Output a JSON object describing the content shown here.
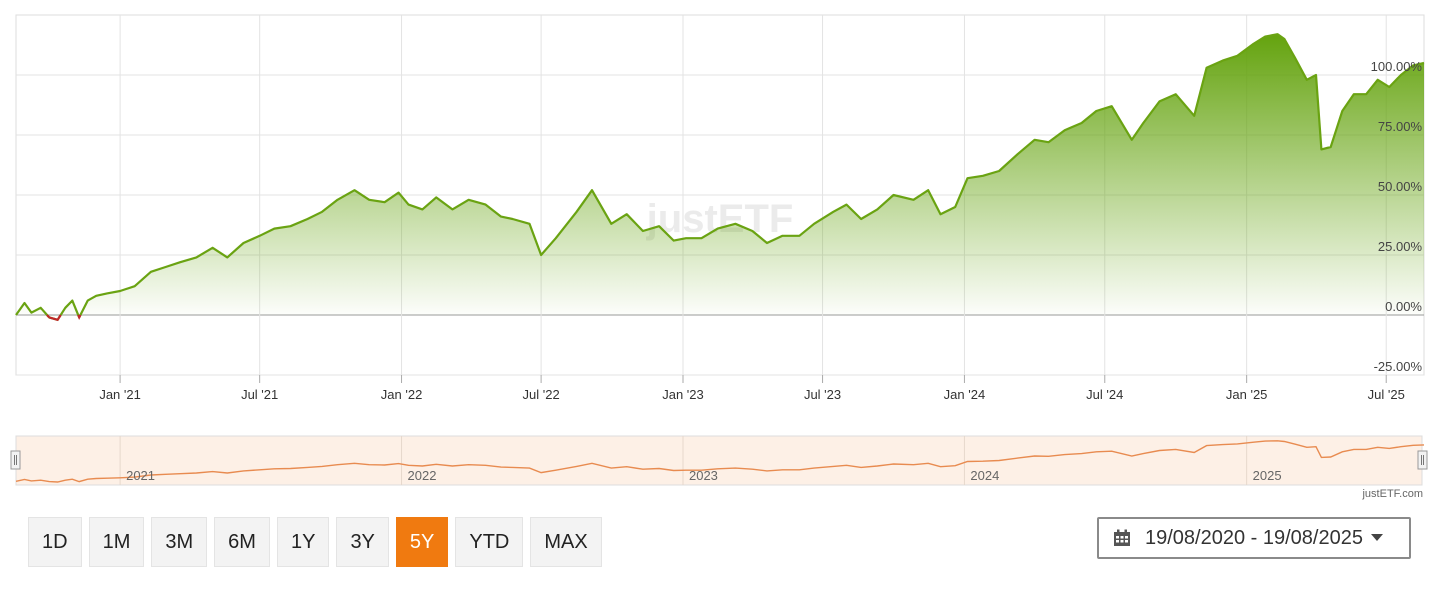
{
  "chart_data": {
    "type": "area",
    "watermark": "justETF",
    "y_ticks": [
      "100.00%",
      "75.00%",
      "50.00%",
      "25.00%",
      "0.00%",
      "-25.00%"
    ],
    "y_tick_values": [
      100,
      75,
      50,
      25,
      0,
      -25
    ],
    "ylim": [
      -25,
      125
    ],
    "x_ticks": [
      "Jan '21",
      "Jul '21",
      "Jan '22",
      "Jul '22",
      "Jan '23",
      "Jul '23",
      "Jan '24",
      "Jul '24",
      "Jan '25",
      "Jul '25"
    ],
    "x_tick_dates": [
      "2021-01-01",
      "2021-07-01",
      "2022-01-01",
      "2022-07-01",
      "2023-01-01",
      "2023-07-01",
      "2024-01-01",
      "2024-07-01",
      "2025-01-01",
      "2025-07-01"
    ],
    "xlim": [
      "2020-08-19",
      "2025-08-19"
    ],
    "series": [
      {
        "color": "#6aa312",
        "negative_color": "#c0282a",
        "x": [
          "2020-08-19",
          "2020-08-30",
          "2020-09-08",
          "2020-09-20",
          "2020-10-01",
          "2020-10-12",
          "2020-10-22",
          "2020-10-31",
          "2020-11-09",
          "2020-11-20",
          "2020-12-01",
          "2020-12-15",
          "2021-01-01",
          "2021-01-20",
          "2021-02-10",
          "2021-03-01",
          "2021-03-20",
          "2021-04-10",
          "2021-05-01",
          "2021-05-20",
          "2021-06-10",
          "2021-07-01",
          "2021-07-20",
          "2021-08-10",
          "2021-09-01",
          "2021-09-20",
          "2021-10-10",
          "2021-11-01",
          "2021-11-20",
          "2021-12-10",
          "2021-12-28",
          "2022-01-10",
          "2022-01-28",
          "2022-02-15",
          "2022-03-08",
          "2022-03-29",
          "2022-04-20",
          "2022-05-10",
          "2022-05-25",
          "2022-06-16",
          "2022-07-01",
          "2022-07-20",
          "2022-08-16",
          "2022-09-05",
          "2022-09-30",
          "2022-10-20",
          "2022-11-10",
          "2022-12-01",
          "2022-12-20",
          "2023-01-05",
          "2023-01-25",
          "2023-02-15",
          "2023-03-10",
          "2023-04-01",
          "2023-04-20",
          "2023-05-10",
          "2023-06-01",
          "2023-06-20",
          "2023-07-15",
          "2023-08-01",
          "2023-08-20",
          "2023-09-10",
          "2023-10-01",
          "2023-10-27",
          "2023-11-15",
          "2023-12-01",
          "2023-12-20",
          "2024-01-05",
          "2024-01-25",
          "2024-02-15",
          "2024-03-10",
          "2024-04-01",
          "2024-04-19",
          "2024-05-10",
          "2024-06-01",
          "2024-06-20",
          "2024-07-10",
          "2024-08-05",
          "2024-08-20",
          "2024-09-10",
          "2024-10-01",
          "2024-10-25",
          "2024-11-10",
          "2024-12-01",
          "2024-12-20",
          "2025-01-10",
          "2025-01-25",
          "2025-02-10",
          "2025-02-19",
          "2025-03-05",
          "2025-03-20",
          "2025-04-01",
          "2025-04-08",
          "2025-04-20",
          "2025-05-05",
          "2025-05-20",
          "2025-06-05",
          "2025-06-20",
          "2025-07-05",
          "2025-07-20",
          "2025-08-05",
          "2025-08-19"
        ],
        "values": [
          0,
          5,
          1,
          3,
          -1,
          -2,
          3,
          6,
          -1,
          6,
          8,
          9,
          10,
          12,
          18,
          20,
          22,
          24,
          28,
          24,
          30,
          33,
          36,
          37,
          40,
          43,
          48,
          52,
          48,
          47,
          51,
          46,
          44,
          49,
          44,
          48,
          46,
          41,
          40,
          38,
          25,
          32,
          43,
          52,
          38,
          42,
          35,
          37,
          31,
          32,
          32,
          36,
          38,
          35,
          30,
          33,
          33,
          38,
          43,
          46,
          40,
          44,
          50,
          48,
          52,
          42,
          45,
          57,
          58,
          60,
          67,
          73,
          72,
          77,
          80,
          85,
          87,
          73,
          80,
          89,
          92,
          83,
          103,
          106,
          108,
          113,
          116,
          117,
          115,
          107,
          98,
          100,
          69,
          70,
          85,
          92,
          92,
          98,
          95,
          100,
          104,
          105
        ]
      }
    ],
    "navigator": {
      "year_labels": [
        "2021",
        "2022",
        "2023",
        "2024",
        "2025"
      ],
      "year_dates": [
        "2021-01-01",
        "2022-01-01",
        "2023-01-01",
        "2024-01-01",
        "2025-01-01"
      ]
    }
  },
  "credit": "justETF.com",
  "range_buttons": [
    "1D",
    "1M",
    "3M",
    "6M",
    "1Y",
    "3Y",
    "5Y",
    "YTD",
    "MAX"
  ],
  "active_range": "5Y",
  "date_range": "19/08/2020 - 19/08/2025",
  "colors": {
    "accent": "#f07a10",
    "line": "#6aa312",
    "negative": "#c0282a",
    "navigator": "#e88b50"
  }
}
